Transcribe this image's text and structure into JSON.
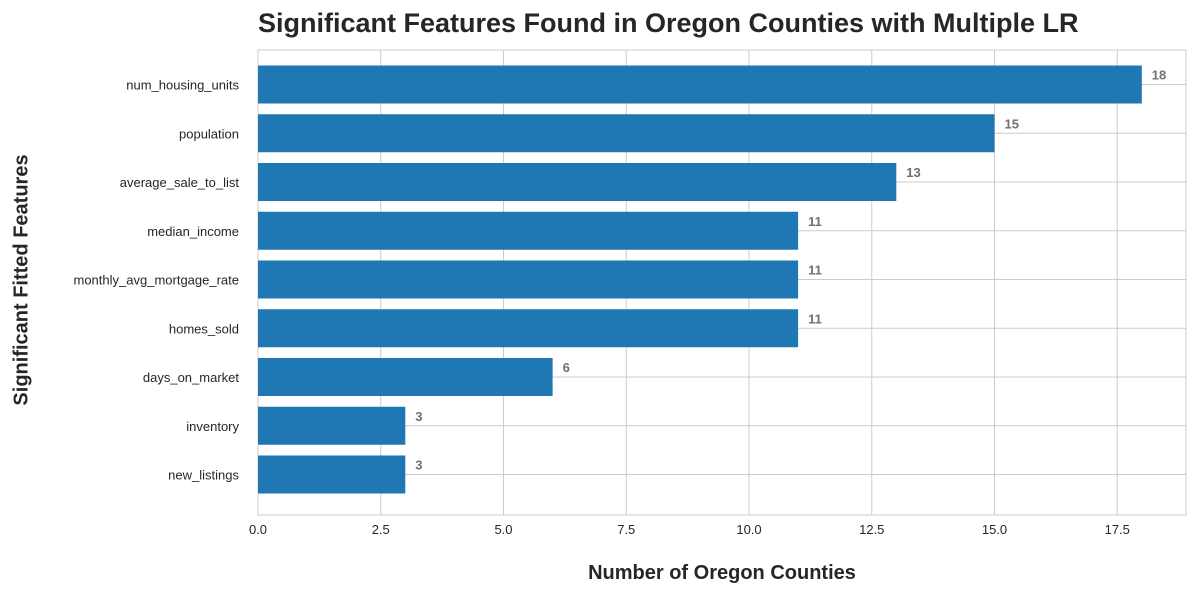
{
  "chart_data": {
    "type": "bar",
    "orientation": "horizontal",
    "title": "Significant Features Found in Oregon Counties with Multiple LR",
    "xlabel": "Number of Oregon Counties",
    "ylabel": "Significant Fitted Features",
    "categories": [
      "num_housing_units",
      "population",
      "average_sale_to_list",
      "median_income",
      "monthly_avg_mortgage_rate",
      "homes_sold",
      "days_on_market",
      "inventory",
      "new_listings"
    ],
    "values": [
      18,
      15,
      13,
      11,
      11,
      11,
      6,
      3,
      3
    ],
    "xlim": [
      0,
      18.9
    ],
    "xticks": [
      "0.0",
      "2.5",
      "5.0",
      "7.5",
      "10.0",
      "12.5",
      "15.0",
      "17.5"
    ],
    "xtick_values": [
      0,
      2.5,
      5,
      7.5,
      10,
      12.5,
      15,
      17.5
    ],
    "grid": true,
    "bar_color": "#1f77b4",
    "value_label_color": "#707070",
    "grid_color": "#cccccc"
  }
}
